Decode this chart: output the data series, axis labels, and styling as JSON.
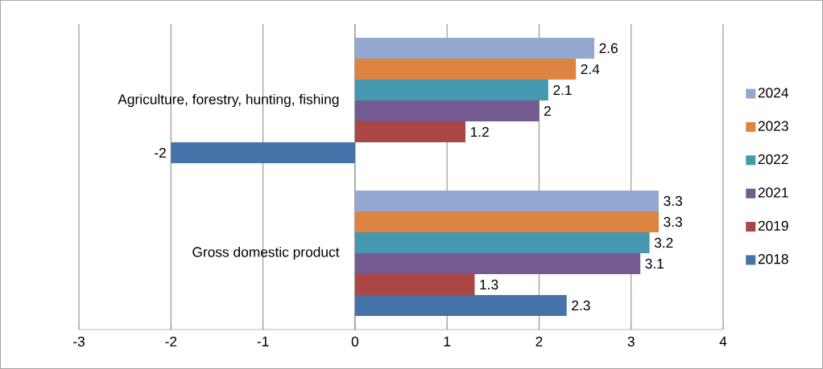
{
  "chart_data": {
    "type": "bar",
    "orientation": "horizontal",
    "categories": [
      "Agriculture, forestry, hunting, fishing",
      "Gross domestic product"
    ],
    "series": [
      {
        "name": "2018",
        "color": "#4672aa",
        "values": [
          -2,
          2.3
        ]
      },
      {
        "name": "2019",
        "color": "#aa4644",
        "values": [
          1.2,
          1.3
        ]
      },
      {
        "name": "2021",
        "color": "#735a91",
        "values": [
          2,
          3.1
        ]
      },
      {
        "name": "2022",
        "color": "#4499b0",
        "values": [
          2.1,
          3.2
        ]
      },
      {
        "name": "2023",
        "color": "#dd8440",
        "values": [
          2.4,
          3.3
        ]
      },
      {
        "name": "2024",
        "color": "#94a9d2",
        "values": [
          2.6,
          3.3
        ]
      }
    ],
    "xlim": [
      -3,
      4
    ],
    "xticks": [
      -3,
      -2,
      -1,
      0,
      1,
      2,
      3,
      4
    ],
    "grid": "x",
    "legend": "right",
    "data_labels": true
  }
}
